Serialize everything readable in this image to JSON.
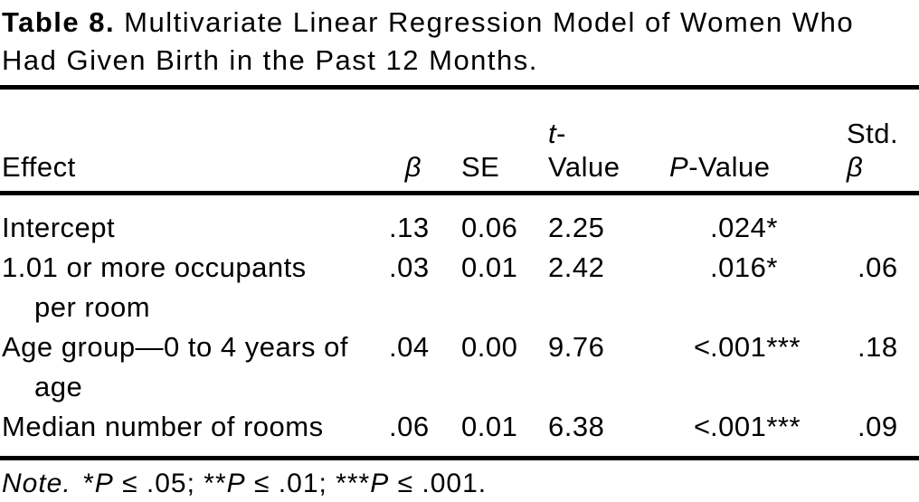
{
  "colors": {
    "background": "#ffffff",
    "text": "#000000",
    "rule": "#000000"
  },
  "title": {
    "bold": "Table 8.",
    "line1_rest": "Multivariate Linear Regression Model of Women Who",
    "line2": "Had Given Birth in the Past 12 Months."
  },
  "table": {
    "headers": {
      "effect": "Effect",
      "beta": "β",
      "se": "SE",
      "t_italic": "t",
      "t_rest": "-Value",
      "p_italic": "P",
      "p_rest": "-Value",
      "std_line1": "Std.",
      "std_line2": "β"
    },
    "rows": [
      {
        "effect": "Intercept",
        "beta": ".13",
        "se": "0.06",
        "t": "2.25",
        "p_prefix": "",
        "p_value": ".024*",
        "std_beta": ""
      },
      {
        "effect_line1": "1.01 or more occupants",
        "effect_line2": "per room",
        "beta": ".03",
        "se": "0.01",
        "t": "2.42",
        "p_prefix": "",
        "p_value": ".016*",
        "std_beta": ".06"
      },
      {
        "effect_line1": "Age group—0 to 4 years of",
        "effect_line2": "age",
        "beta": ".04",
        "se": "0.00",
        "t": "9.76",
        "p_prefix": "<",
        "p_value": ".001***",
        "std_beta": ".18"
      },
      {
        "effect": "Median number of rooms",
        "beta": ".06",
        "se": "0.01",
        "t": "6.38",
        "p_prefix": "<",
        "p_value": ".001***",
        "std_beta": ".09"
      }
    ]
  },
  "footnote": {
    "note_label": "Note.",
    "sig1_stars": "*",
    "sig1_p": "P",
    "sig1_rest": " ≤ .05;",
    "sig2_stars": "**",
    "sig2_p": "P",
    "sig2_rest": " ≤ .01;",
    "sig3_stars": "***",
    "sig3_p": "P",
    "sig3_rest": " ≤ .001."
  }
}
